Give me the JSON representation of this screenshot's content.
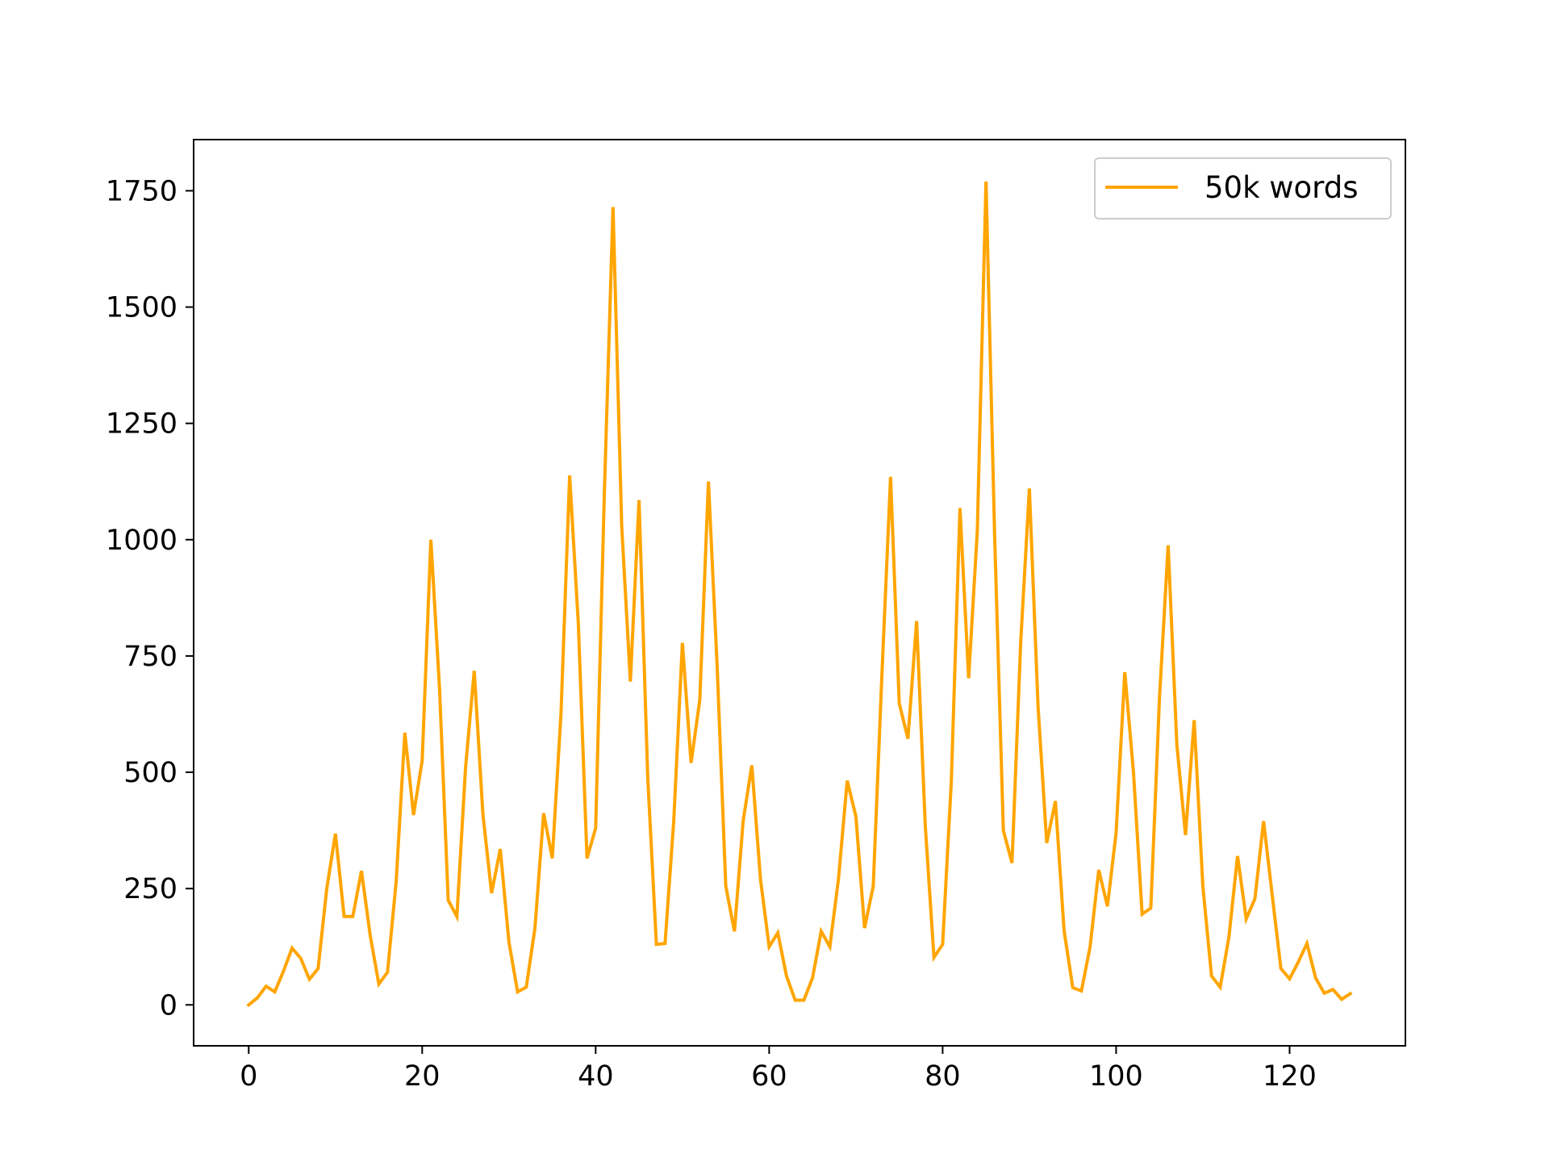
{
  "chart_data": {
    "type": "line",
    "title": "",
    "xlabel": "",
    "ylabel": "",
    "xlim": [
      -6.35,
      133.35
    ],
    "ylim": [
      -88,
      1860
    ],
    "x_ticks": [
      0,
      20,
      40,
      60,
      80,
      100,
      120
    ],
    "x_tick_labels": [
      "0",
      "20",
      "40",
      "60",
      "80",
      "100",
      "120"
    ],
    "y_ticks": [
      0,
      250,
      500,
      750,
      1000,
      1250,
      1500,
      1750
    ],
    "y_tick_labels": [
      "0",
      "250",
      "500",
      "750",
      "1000",
      "1250",
      "1500",
      "1750"
    ],
    "grid": false,
    "legend": {
      "position": "upper-right",
      "entries": [
        "50k words"
      ]
    },
    "series": [
      {
        "name": "50k words",
        "color": "#ffa500",
        "x": [
          0,
          1,
          2,
          3,
          4,
          5,
          6,
          7,
          8,
          9,
          10,
          11,
          12,
          13,
          14,
          15,
          16,
          17,
          18,
          19,
          20,
          21,
          22,
          23,
          24,
          25,
          26,
          27,
          28,
          29,
          30,
          31,
          32,
          33,
          34,
          35,
          36,
          37,
          38,
          39,
          40,
          41,
          42,
          43,
          44,
          45,
          46,
          47,
          48,
          49,
          50,
          51,
          52,
          53,
          54,
          55,
          56,
          57,
          58,
          59,
          60,
          61,
          62,
          63,
          64,
          65,
          66,
          67,
          68,
          69,
          70,
          71,
          72,
          73,
          74,
          75,
          76,
          77,
          78,
          79,
          80,
          81,
          82,
          83,
          84,
          85,
          86,
          87,
          88,
          89,
          90,
          91,
          92,
          93,
          94,
          95,
          96,
          97,
          98,
          99,
          100,
          101,
          102,
          103,
          104,
          105,
          106,
          107,
          108,
          109,
          110,
          111,
          112,
          113,
          114,
          115,
          116,
          117,
          118,
          119,
          120,
          121,
          122,
          123,
          124,
          125,
          126,
          127
        ],
        "values": [
          0,
          15,
          40,
          28,
          72,
          122,
          100,
          55,
          78,
          250,
          368,
          190,
          190,
          288,
          150,
          45,
          70,
          265,
          585,
          408,
          525,
          1000,
          680,
          225,
          190,
          510,
          718,
          410,
          240,
          335,
          135,
          28,
          38,
          165,
          412,
          315,
          625,
          1138,
          820,
          315,
          380,
          1100,
          1715,
          1030,
          695,
          1085,
          490,
          130,
          132,
          395,
          778,
          520,
          655,
          1125,
          730,
          255,
          158,
          395,
          515,
          270,
          125,
          155,
          62,
          10,
          10,
          58,
          158,
          125,
          272,
          482,
          405,
          165,
          255,
          710,
          1135,
          648,
          572,
          825,
          385,
          102,
          130,
          480,
          1068,
          702,
          1020,
          1770,
          1005,
          375,
          305,
          780,
          1110,
          642,
          348,
          438,
          160,
          37,
          30,
          125,
          290,
          212,
          370,
          715,
          500,
          195,
          208,
          660,
          988,
          560,
          365,
          612,
          255,
          62,
          38,
          145,
          320,
          185,
          228,
          395,
          235,
          78,
          56,
          92,
          132,
          58,
          25,
          33,
          12,
          24
        ]
      }
    ]
  }
}
